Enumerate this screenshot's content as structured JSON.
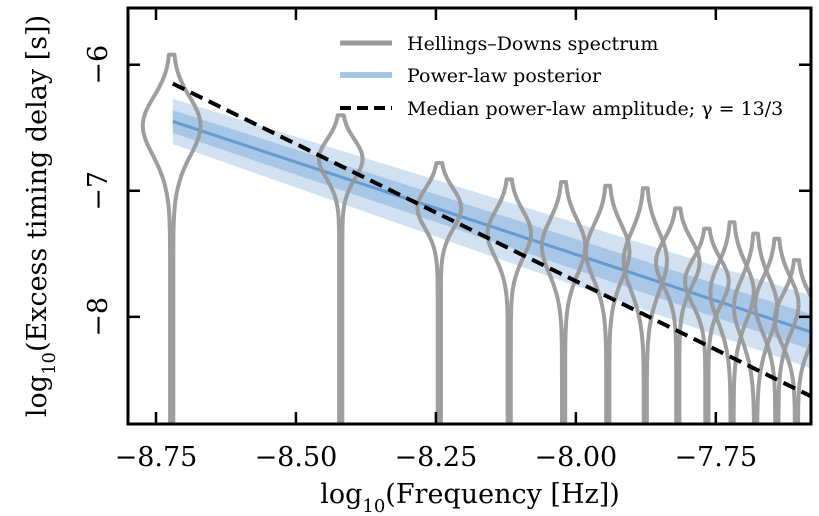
{
  "chart_data": {
    "type": "line",
    "xlabel_main": "log",
    "xlabel_sub": "10",
    "xlabel_rest": "(Frequency [Hz])",
    "ylabel_main": "log",
    "ylabel_sub": "10",
    "ylabel_rest": "(Excess timing delay [s])",
    "xlim": [
      -8.8,
      -7.58
    ],
    "ylim": [
      -8.85,
      -5.55
    ],
    "x_ticks": [
      -8.75,
      -8.5,
      -8.25,
      -8.0,
      -7.75
    ],
    "x_tick_labels": [
      "−8.75",
      "−8.50",
      "−8.25",
      "−8.00",
      "−7.75"
    ],
    "y_ticks": [
      -6,
      -7,
      -8
    ],
    "y_tick_labels": [
      "−6",
      "−7",
      "−8"
    ],
    "grid": false,
    "legend_position": "top-right",
    "legend": [
      {
        "label": "Hellings–Downs spectrum",
        "style": "gray-thick"
      },
      {
        "label": "Power-law posterior",
        "style": "blue-band"
      },
      {
        "label": "Median power-law amplitude; γ = 13/3",
        "style": "black-dashed"
      }
    ],
    "colors": {
      "violin": "#999999",
      "band": "#5b95cf",
      "median": "#000000"
    },
    "median_line": {
      "x": [
        -8.72,
        -7.58
      ],
      "y": [
        -6.15,
        -8.63
      ]
    },
    "posterior_band": {
      "x": [
        -8.72,
        -7.58
      ],
      "center": [
        -6.45,
        -8.12
      ],
      "inner": [
        [
          -6.36,
          -6.54
        ],
        [
          -7.98,
          -8.26
        ]
      ],
      "outer": [
        [
          -6.27,
          -6.63
        ],
        [
          -7.83,
          -8.41
        ]
      ]
    },
    "violins": [
      {
        "x": -8.722,
        "peak": -6.46,
        "top": -5.92,
        "width": 0.045
      },
      {
        "x": -8.42,
        "peak": -6.73,
        "top": -6.4,
        "width": 0.033
      },
      {
        "x": -8.244,
        "peak": -7.12,
        "top": -6.78,
        "width": 0.033
      },
      {
        "x": -8.119,
        "peak": -7.32,
        "top": -6.91,
        "width": 0.033
      },
      {
        "x": -8.022,
        "peak": -7.42,
        "top": -6.93,
        "width": 0.033
      },
      {
        "x": -7.943,
        "peak": -7.46,
        "top": -6.96,
        "width": 0.033
      },
      {
        "x": -7.876,
        "peak": -7.53,
        "top": -6.98,
        "width": 0.033
      },
      {
        "x": -7.818,
        "peak": -7.55,
        "top": -7.14,
        "width": 0.033
      },
      {
        "x": -7.766,
        "peak": -7.7,
        "top": -7.3,
        "width": 0.033
      },
      {
        "x": -7.721,
        "peak": -7.78,
        "top": -7.25,
        "width": 0.033
      },
      {
        "x": -7.679,
        "peak": -7.9,
        "top": -7.34,
        "width": 0.033
      },
      {
        "x": -7.641,
        "peak": -7.88,
        "top": -7.38,
        "width": 0.033
      },
      {
        "x": -7.606,
        "peak": -8.0,
        "top": -7.55,
        "width": 0.033
      }
    ]
  }
}
